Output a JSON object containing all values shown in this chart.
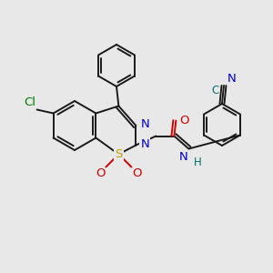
{
  "bg_color": "#e8e8e8",
  "bond_color": "#1a1a1a",
  "lw": 1.4,
  "atom_colors": {
    "Cl": "#008000",
    "S": "#b8a000",
    "O": "#cc0000",
    "N": "#0000cc",
    "CN_teal": "#007070",
    "H_teal": "#007070"
  },
  "fs": 9.5
}
